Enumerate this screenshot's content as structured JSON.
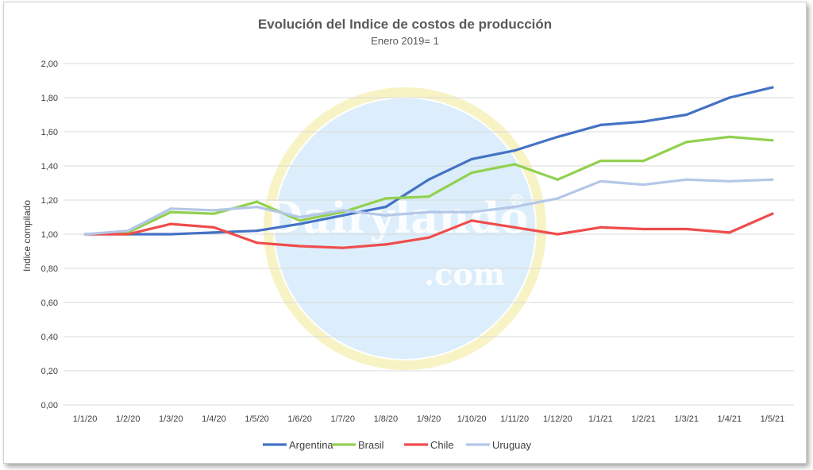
{
  "chart_data": {
    "type": "line",
    "title": "Evolución del Indice de costos de producción",
    "subtitle": "Enero 2019= 1",
    "ylabel": "Indice compilado",
    "xlabel": "",
    "ylim": [
      0,
      2
    ],
    "yticks": [
      "0,00",
      "0,20",
      "0,40",
      "0,60",
      "0,80",
      "1,00",
      "1,20",
      "1,40",
      "1,60",
      "1,80",
      "2,00"
    ],
    "categories": [
      "1/1/20",
      "1/2/20",
      "1/3/20",
      "1/4/20",
      "1/5/20",
      "1/6/20",
      "1/7/20",
      "1/8/20",
      "1/9/20",
      "1/10/20",
      "1/11/20",
      "1/12/20",
      "1/1/21",
      "1/2/21",
      "1/3/21",
      "1/4/21",
      "1/5/21"
    ],
    "grid": true,
    "legend_position": "bottom",
    "series": [
      {
        "name": "Argentina",
        "color": "#4472c4",
        "values": [
          1.0,
          1.0,
          1.0,
          1.01,
          1.02,
          1.06,
          1.11,
          1.16,
          1.32,
          1.44,
          1.49,
          1.57,
          1.64,
          1.66,
          1.7,
          1.8,
          1.86
        ]
      },
      {
        "name": "Brasil",
        "color": "#92d050",
        "values": [
          1.0,
          1.01,
          1.13,
          1.12,
          1.19,
          1.08,
          1.13,
          1.21,
          1.22,
          1.36,
          1.41,
          1.32,
          1.43,
          1.43,
          1.54,
          1.57,
          1.55
        ]
      },
      {
        "name": "Chile",
        "color": "#ef4c4c",
        "values": [
          1.0,
          1.0,
          1.06,
          1.04,
          0.95,
          0.93,
          0.92,
          0.94,
          0.98,
          1.08,
          1.04,
          1.0,
          1.04,
          1.03,
          1.03,
          1.01,
          1.12
        ]
      },
      {
        "name": "Uruguay",
        "color": "#b4c7e7",
        "values": [
          1.0,
          1.02,
          1.15,
          1.14,
          1.16,
          1.1,
          1.14,
          1.11,
          1.13,
          1.13,
          1.16,
          1.21,
          1.31,
          1.29,
          1.32,
          1.31,
          1.32
        ]
      }
    ]
  },
  "watermark": {
    "brand": "Dairylando",
    "domain": ".com",
    "registered": "®",
    "color": "#d6ebfa",
    "ring_color": "#f6efb0"
  }
}
